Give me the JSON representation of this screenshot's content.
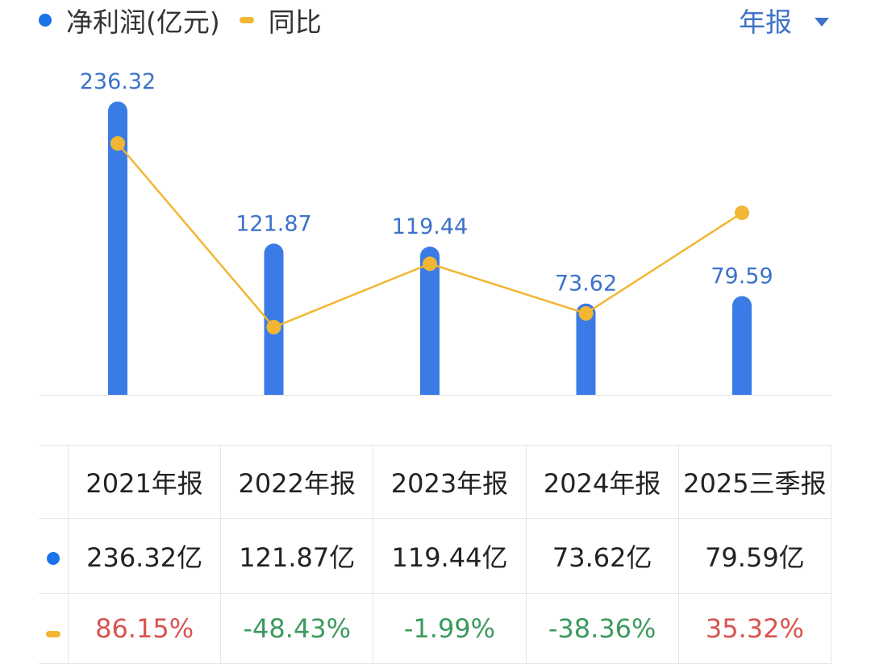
{
  "legend": {
    "bar_label": "净利润(亿元)",
    "line_label": "同比"
  },
  "period_selector": {
    "label": "年报"
  },
  "colors": {
    "bar": "#3b7be6",
    "bar_label": "#3d72c9",
    "line": "#f2b632",
    "legend_dot": "#1a73e8",
    "positive": "#d9534f",
    "negative": "#3c9a5f"
  },
  "chart_data": {
    "type": "bar",
    "categories": [
      "2021年报",
      "2022年报",
      "2023年报",
      "2024年报",
      "2025三季报"
    ],
    "series": [
      {
        "name": "净利润(亿元)",
        "type": "bar",
        "values": [
          236.32,
          121.87,
          119.44,
          73.62,
          79.59
        ]
      },
      {
        "name": "同比",
        "type": "line",
        "values": [
          86.15,
          -48.43,
          -1.99,
          -38.36,
          35.32
        ]
      }
    ],
    "data_labels": [
      "236.32",
      "121.87",
      "119.44",
      "73.62",
      "79.59"
    ],
    "legend_position": "top-left",
    "grid": false
  },
  "table": {
    "headers": [
      "2021年报",
      "2022年报",
      "2023年报",
      "2024年报",
      "2025三季报"
    ],
    "values": [
      "236.32亿",
      "121.87亿",
      "119.44亿",
      "73.62亿",
      "79.59亿"
    ],
    "yoy": [
      "86.15%",
      "-48.43%",
      "-1.99%",
      "-38.36%",
      "35.32%"
    ]
  }
}
